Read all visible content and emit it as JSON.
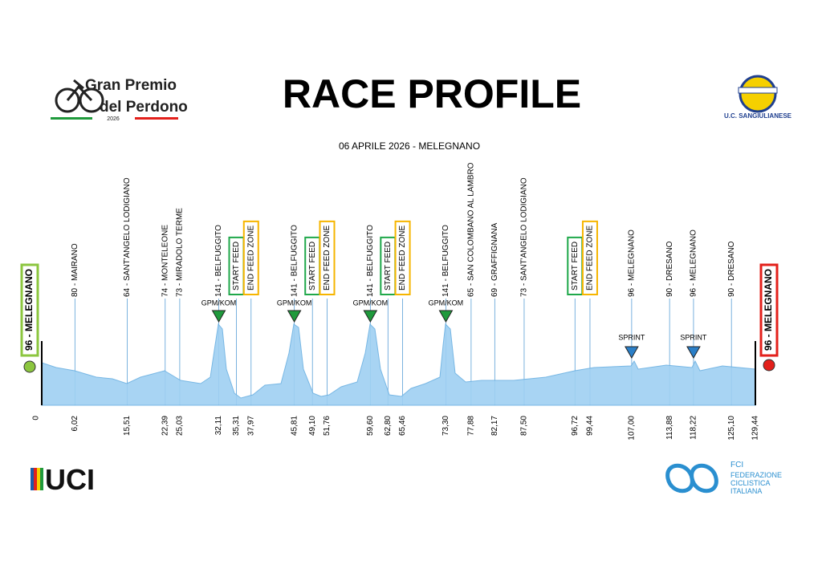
{
  "header": {
    "title": "RACE PROFILE",
    "subtitle": "06 APRILE 2026 - MELEGNANO",
    "logo_left": {
      "line1": "Gran Premio",
      "line2": "del Perdono",
      "year": "2026"
    },
    "logo_right": "U.C. SANGIULIANESE"
  },
  "profile": {
    "start": {
      "km": {
        "value": 0,
        "label": "0"
      },
      "label": "96 - MELEGNANO",
      "color": "#8cc63f"
    },
    "finish": {
      "km": {
        "value": 129.44,
        "label": "129,44"
      },
      "label": "96 - MELEGNANO",
      "color": "#e3201b"
    },
    "points": [
      {
        "km": {
          "value": 6.02,
          "label": "6,02"
        },
        "label": "80 - MAIRANO"
      },
      {
        "km": {
          "value": 15.51,
          "label": "15,51"
        },
        "label": "64 - SANT'ANGELO LODIGIANO"
      },
      {
        "km": {
          "value": 22.39,
          "label": "22,39"
        },
        "label": "74 - MONTELEONE"
      },
      {
        "km": {
          "value": 25.03,
          "label": "25,03"
        },
        "label": "73 - MIRADOLO TERME"
      },
      {
        "km": {
          "value": 32.11,
          "label": "32,11"
        },
        "label": "141 - BELFUGGITO",
        "marker": {
          "label": "GPM/KOM",
          "color": "#1f9a3c"
        }
      },
      {
        "km": {
          "value": 35.31,
          "label": "35,31"
        },
        "label": "START FEED",
        "box": "#1fa84a"
      },
      {
        "km": {
          "value": 37.97,
          "label": "37,97"
        },
        "label": "END FEED ZONE",
        "box": "#f6b500"
      },
      {
        "km": {
          "value": 45.81,
          "label": "45,81"
        },
        "label": "141 - BELFUGGITO",
        "marker": {
          "label": "GPM/KOM",
          "color": "#1f9a3c"
        }
      },
      {
        "km": {
          "value": 49.1,
          "label": "49,10"
        },
        "label": "START FEED",
        "box": "#1fa84a"
      },
      {
        "km": {
          "value": 51.76,
          "label": "51,76"
        },
        "label": "END FEED ZONE",
        "box": "#f6b500"
      },
      {
        "km": {
          "value": 59.6,
          "label": "59,60"
        },
        "label": "141 - BELFUGGITO",
        "marker": {
          "label": "GPM/KOM",
          "color": "#1f9a3c"
        }
      },
      {
        "km": {
          "value": 62.8,
          "label": "62,80"
        },
        "label": "START FEED",
        "box": "#1fa84a"
      },
      {
        "km": {
          "value": 65.46,
          "label": "65,46"
        },
        "label": "END FEED ZONE",
        "box": "#f6b500"
      },
      {
        "km": {
          "value": 73.3,
          "label": "73,30"
        },
        "label": "141 - BELFUGGITO",
        "marker": {
          "label": "GPM/KOM",
          "color": "#1f9a3c"
        }
      },
      {
        "km": {
          "value": 77.88,
          "label": "77,88"
        },
        "label": "65 - SAN COLOMBANO AL LAMBRO"
      },
      {
        "km": {
          "value": 82.17,
          "label": "82,17"
        },
        "label": "69 - GRAFFIGNANA"
      },
      {
        "km": {
          "value": 87.5,
          "label": "87,50"
        },
        "label": "73 - SANT'ANGELO LODIGIANO"
      },
      {
        "km": {
          "value": 96.72,
          "label": "96,72"
        },
        "label": "START FEED",
        "box": "#1fa84a"
      },
      {
        "km": {
          "value": 99.44,
          "label": "99,44"
        },
        "label": "END FEED ZONE",
        "box": "#f6b500"
      },
      {
        "km": {
          "value": 107,
          "label": "107,00"
        },
        "label": "96 - MELEGNANO",
        "marker": {
          "label": "SPRINT",
          "color": "#2a7fc8"
        }
      },
      {
        "km": {
          "value": 113.88,
          "label": "113,88"
        },
        "label": "90 - DRESANO"
      },
      {
        "km": {
          "value": 118.22,
          "label": "118,22"
        },
        "label": "96 - MELEGNANO",
        "marker": {
          "label": "SPRINT",
          "color": "#2a7fc8"
        }
      },
      {
        "km": {
          "value": 125.1,
          "label": "125,10"
        },
        "label": "90 - DRESANO"
      }
    ]
  },
  "footer": {
    "left": "UCI",
    "right": {
      "short": "FCI",
      "line1": "FEDERAZIONE",
      "line2": "CICLISTICA",
      "line3": "ITALIANA"
    }
  }
}
